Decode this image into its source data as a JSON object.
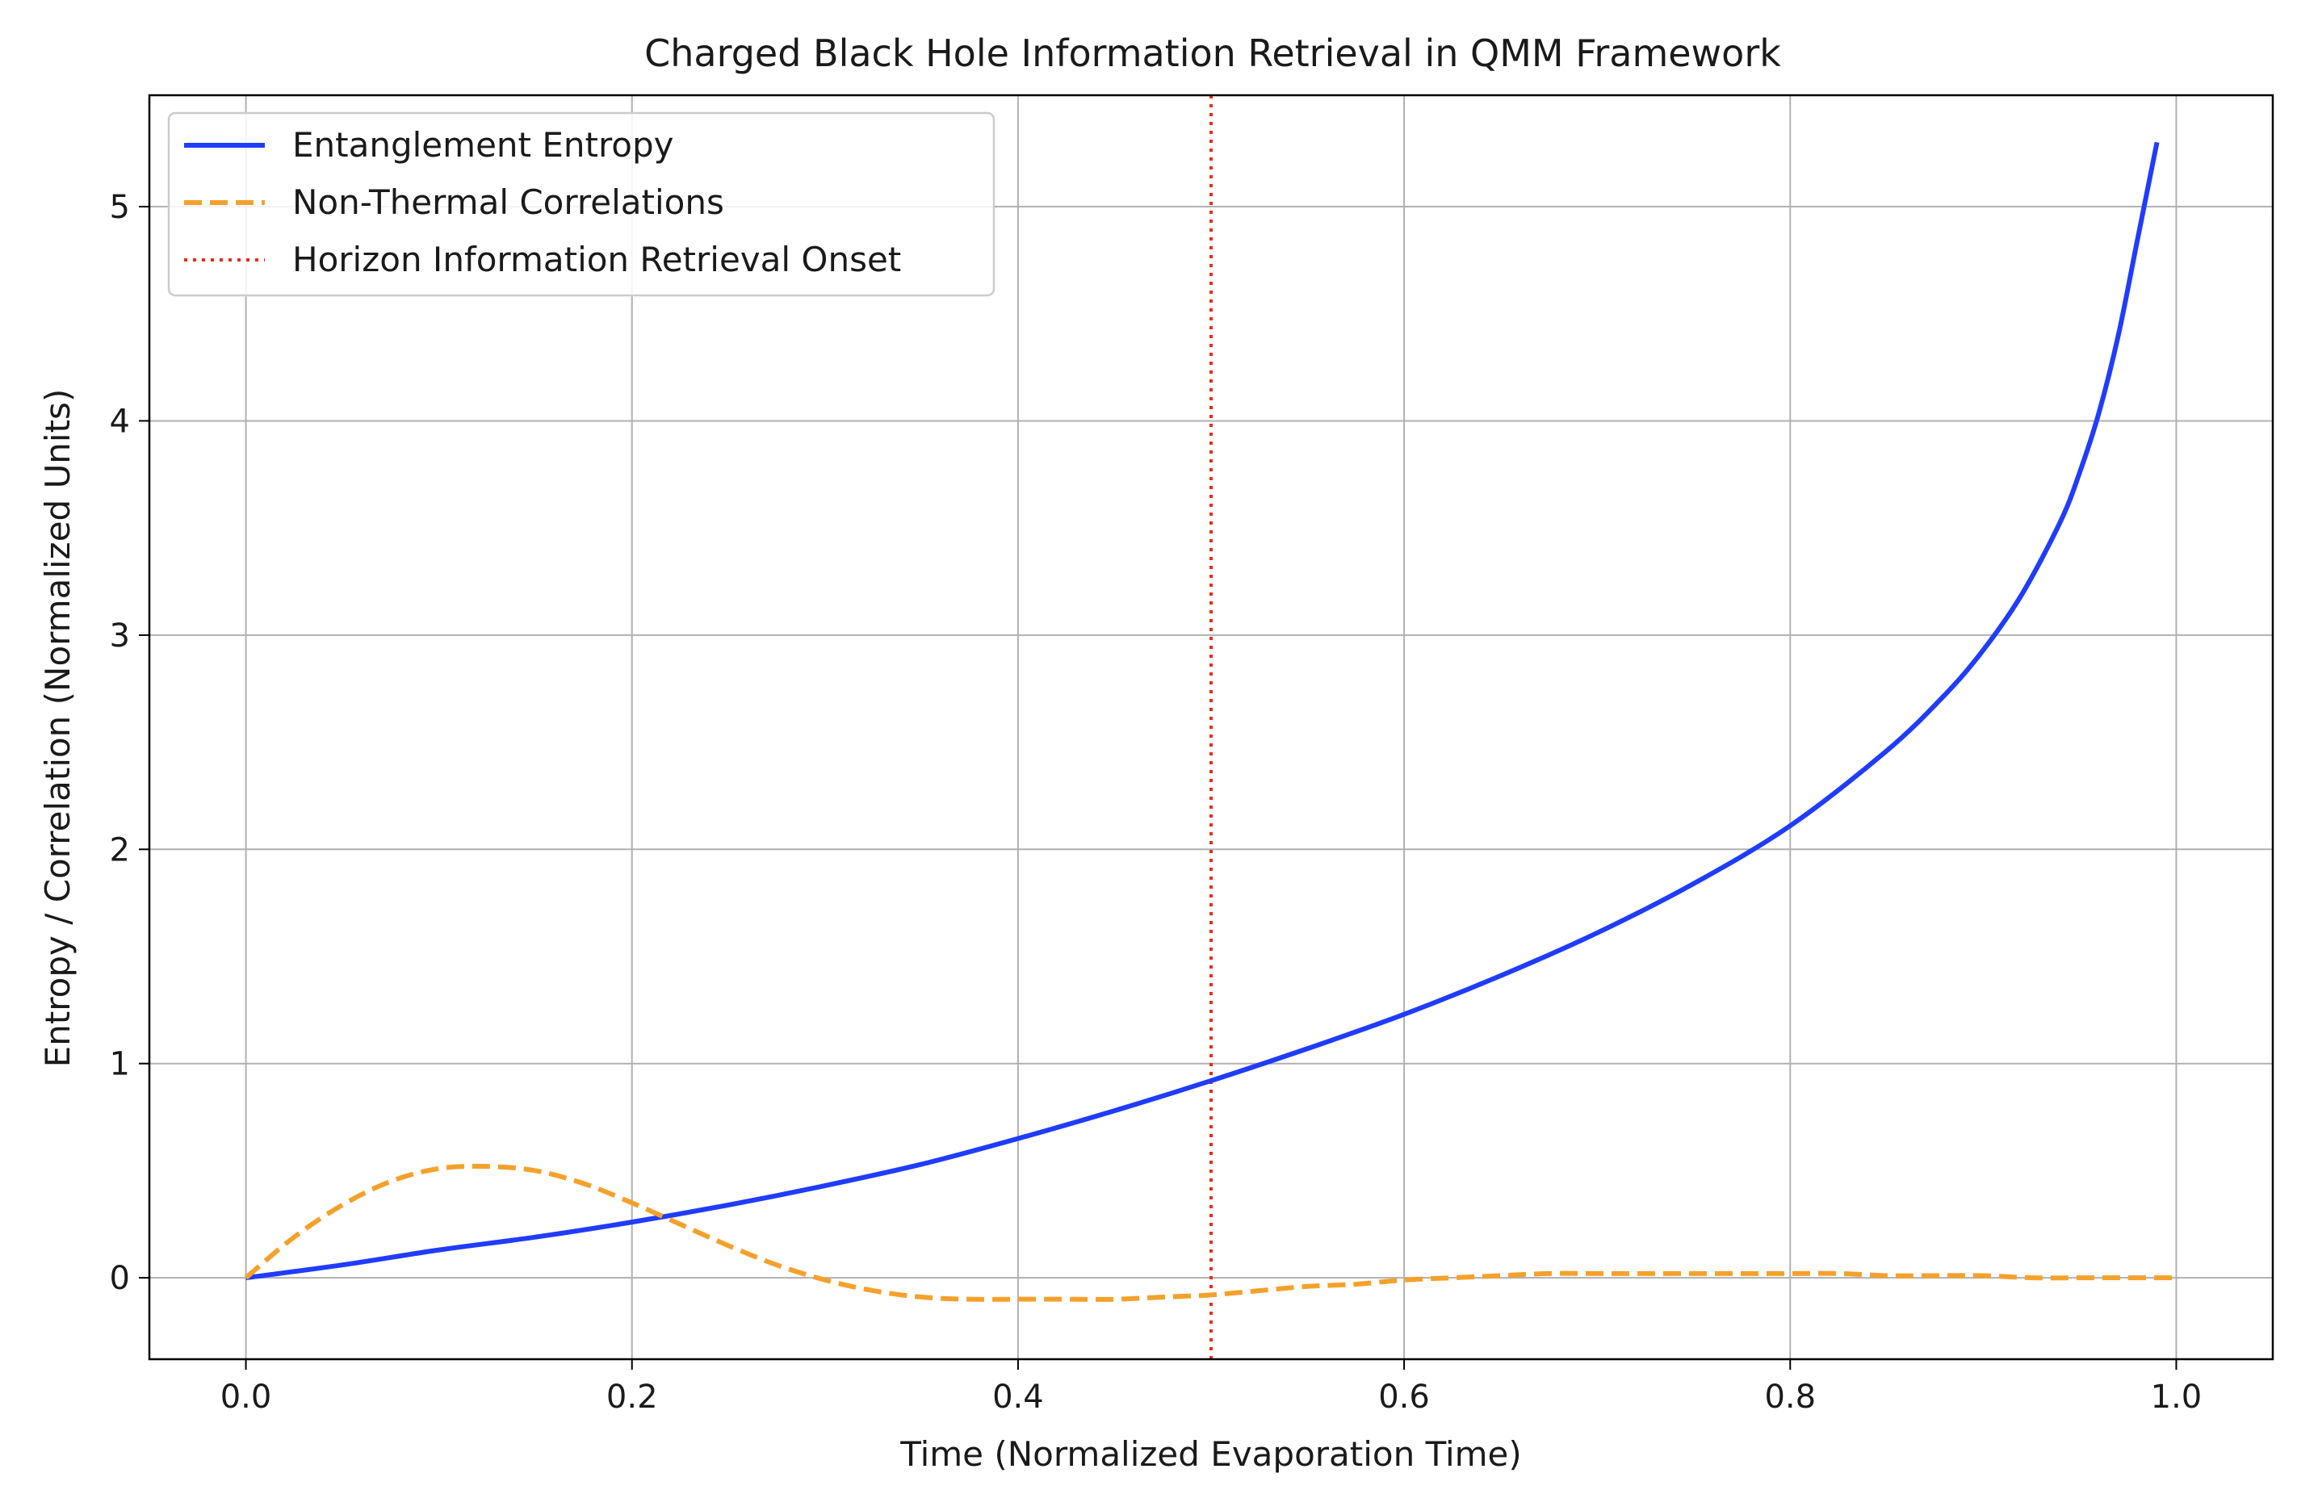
{
  "chart_data": {
    "type": "line",
    "title": "Charged Black Hole Information Retrieval in QMM Framework",
    "xlabel": "Time (Normalized Evaporation Time)",
    "ylabel": "Entropy / Correlation (Normalized Units)",
    "xlim": [
      -0.05,
      1.05
    ],
    "ylim": [
      -0.38,
      5.52
    ],
    "xticks": [
      0.0,
      0.2,
      0.4,
      0.6,
      0.8,
      1.0
    ],
    "xtick_labels": [
      "0.0",
      "0.2",
      "0.4",
      "0.6",
      "0.8",
      "1.0"
    ],
    "yticks": [
      0,
      1,
      2,
      3,
      4,
      5
    ],
    "ytick_labels": [
      "0",
      "1",
      "2",
      "3",
      "4",
      "5"
    ],
    "grid": true,
    "legend_position": "upper-left",
    "series": [
      {
        "name": "Entanglement Entropy",
        "color": "#1f3cff",
        "style": "solid",
        "x": [
          0.0,
          0.05,
          0.1,
          0.15,
          0.2,
          0.25,
          0.3,
          0.35,
          0.4,
          0.45,
          0.5,
          0.55,
          0.6,
          0.65,
          0.7,
          0.75,
          0.8,
          0.85,
          0.88,
          0.9,
          0.92,
          0.94,
          0.95,
          0.96,
          0.97,
          0.98,
          0.99
        ],
        "values": [
          0.0,
          0.06,
          0.13,
          0.19,
          0.26,
          0.34,
          0.43,
          0.53,
          0.65,
          0.78,
          0.92,
          1.07,
          1.23,
          1.41,
          1.61,
          1.84,
          2.11,
          2.46,
          2.72,
          2.93,
          3.19,
          3.53,
          3.76,
          4.04,
          4.4,
          4.85,
          5.3
        ]
      },
      {
        "name": "Non-Thermal Correlations",
        "color": "#f4a12c",
        "style": "dashed",
        "x": [
          0.0,
          0.025,
          0.05,
          0.075,
          0.1,
          0.125,
          0.15,
          0.175,
          0.2,
          0.225,
          0.25,
          0.275,
          0.3,
          0.325,
          0.35,
          0.375,
          0.4,
          0.425,
          0.45,
          0.475,
          0.5,
          0.525,
          0.55,
          0.575,
          0.6,
          0.625,
          0.65,
          0.675,
          0.7,
          0.725,
          0.75,
          0.775,
          0.8,
          0.825,
          0.85,
          0.875,
          0.9,
          0.925,
          0.95,
          0.975,
          1.0
        ],
        "values": [
          0.0,
          0.19,
          0.34,
          0.45,
          0.51,
          0.52,
          0.5,
          0.44,
          0.35,
          0.25,
          0.15,
          0.06,
          -0.01,
          -0.06,
          -0.09,
          -0.1,
          -0.1,
          -0.1,
          -0.1,
          -0.09,
          -0.08,
          -0.06,
          -0.04,
          -0.03,
          -0.01,
          0.0,
          0.01,
          0.02,
          0.02,
          0.02,
          0.02,
          0.02,
          0.02,
          0.02,
          0.01,
          0.01,
          0.01,
          0.0,
          0.0,
          0.0,
          0.0
        ]
      }
    ],
    "vlines": [
      {
        "name": "Horizon Information Retrieval Onset",
        "x": 0.5,
        "color": "#ee2a1a",
        "style": "dotted"
      }
    ]
  }
}
